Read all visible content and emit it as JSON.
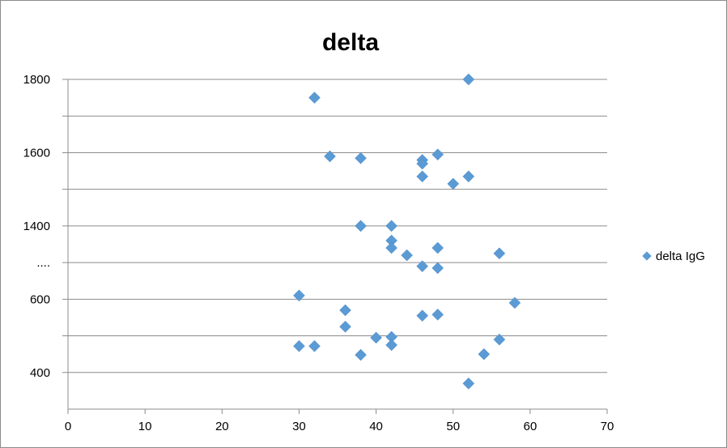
{
  "chart_data": {
    "type": "scatter",
    "title": "delta",
    "xlabel": "",
    "ylabel": "",
    "xlim": [
      0,
      70
    ],
    "x_ticks": [
      0,
      10,
      20,
      30,
      40,
      50,
      60,
      70
    ],
    "grid": "horizontal",
    "legend_position": "right",
    "y_ticks": [
      {
        "label": "400",
        "row": 0
      },
      {
        "label": "600",
        "row": 2
      },
      {
        "label": "....",
        "row": 3
      },
      {
        "label": "1400",
        "row": 4
      },
      {
        "label": "1600",
        "row": 6
      },
      {
        "label": "1800",
        "row": 8
      }
    ],
    "series": [
      {
        "name": "delta IgG",
        "color": "#5b9bd5",
        "marker": "diamond",
        "x": [
          32,
          52,
          34,
          38,
          46,
          46,
          48,
          46,
          52,
          50,
          38,
          42,
          42,
          42,
          44,
          48,
          56,
          46,
          48,
          30,
          58,
          36,
          46,
          48,
          36,
          40,
          42,
          42,
          30,
          32,
          38,
          54,
          56,
          52
        ],
        "y": [
          7.5,
          8.0,
          5.9,
          5.85,
          5.8,
          5.7,
          5.95,
          5.35,
          5.35,
          5.15,
          4.0,
          4.0,
          3.6,
          3.4,
          3.2,
          3.4,
          3.25,
          2.9,
          2.85,
          2.1,
          1.9,
          1.7,
          1.55,
          1.58,
          1.25,
          0.95,
          0.97,
          0.75,
          0.72,
          0.72,
          0.48,
          0.5,
          0.9,
          -0.3
        ]
      }
    ]
  }
}
